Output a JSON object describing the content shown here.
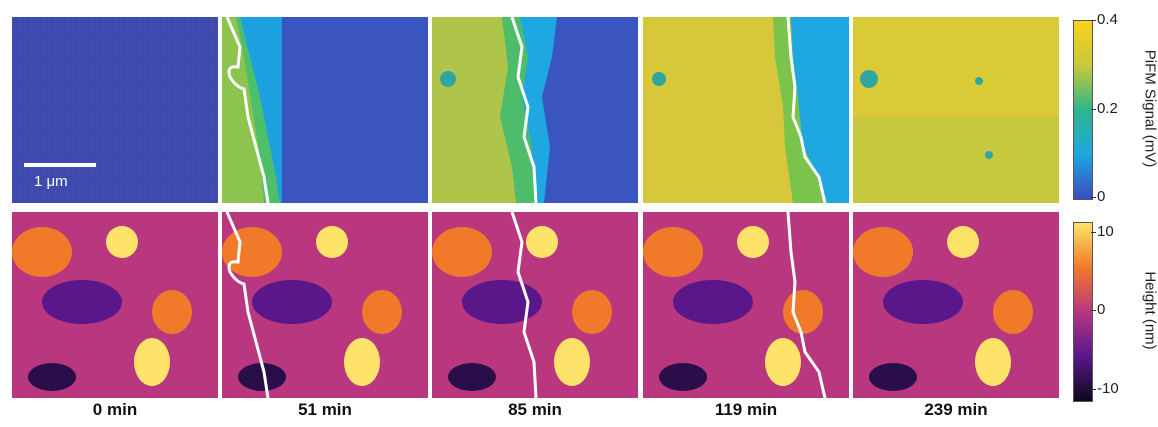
{
  "figure": {
    "time_labels": [
      "0 min",
      "51 min",
      "85 min",
      "119 min",
      "239 min"
    ],
    "scale_bar_label": "1 μm",
    "pifm_colorbar": {
      "title": "PiFM Signal (mV)",
      "ticks": [
        "0.4",
        "0.2",
        "0"
      ],
      "colormap": "parula",
      "colors": [
        "#3b4cc0",
        "#1ea7e0",
        "#2fb58a",
        "#c9c83a",
        "#f9d21e"
      ]
    },
    "height_colorbar": {
      "title": "Height (nm)",
      "ticks": [
        "10",
        "0",
        "-10"
      ],
      "colormap": "inferno",
      "colors": [
        "#0b0a1a",
        "#5a178a",
        "#b8377f",
        "#f17a2a",
        "#fde36a"
      ]
    }
  }
}
